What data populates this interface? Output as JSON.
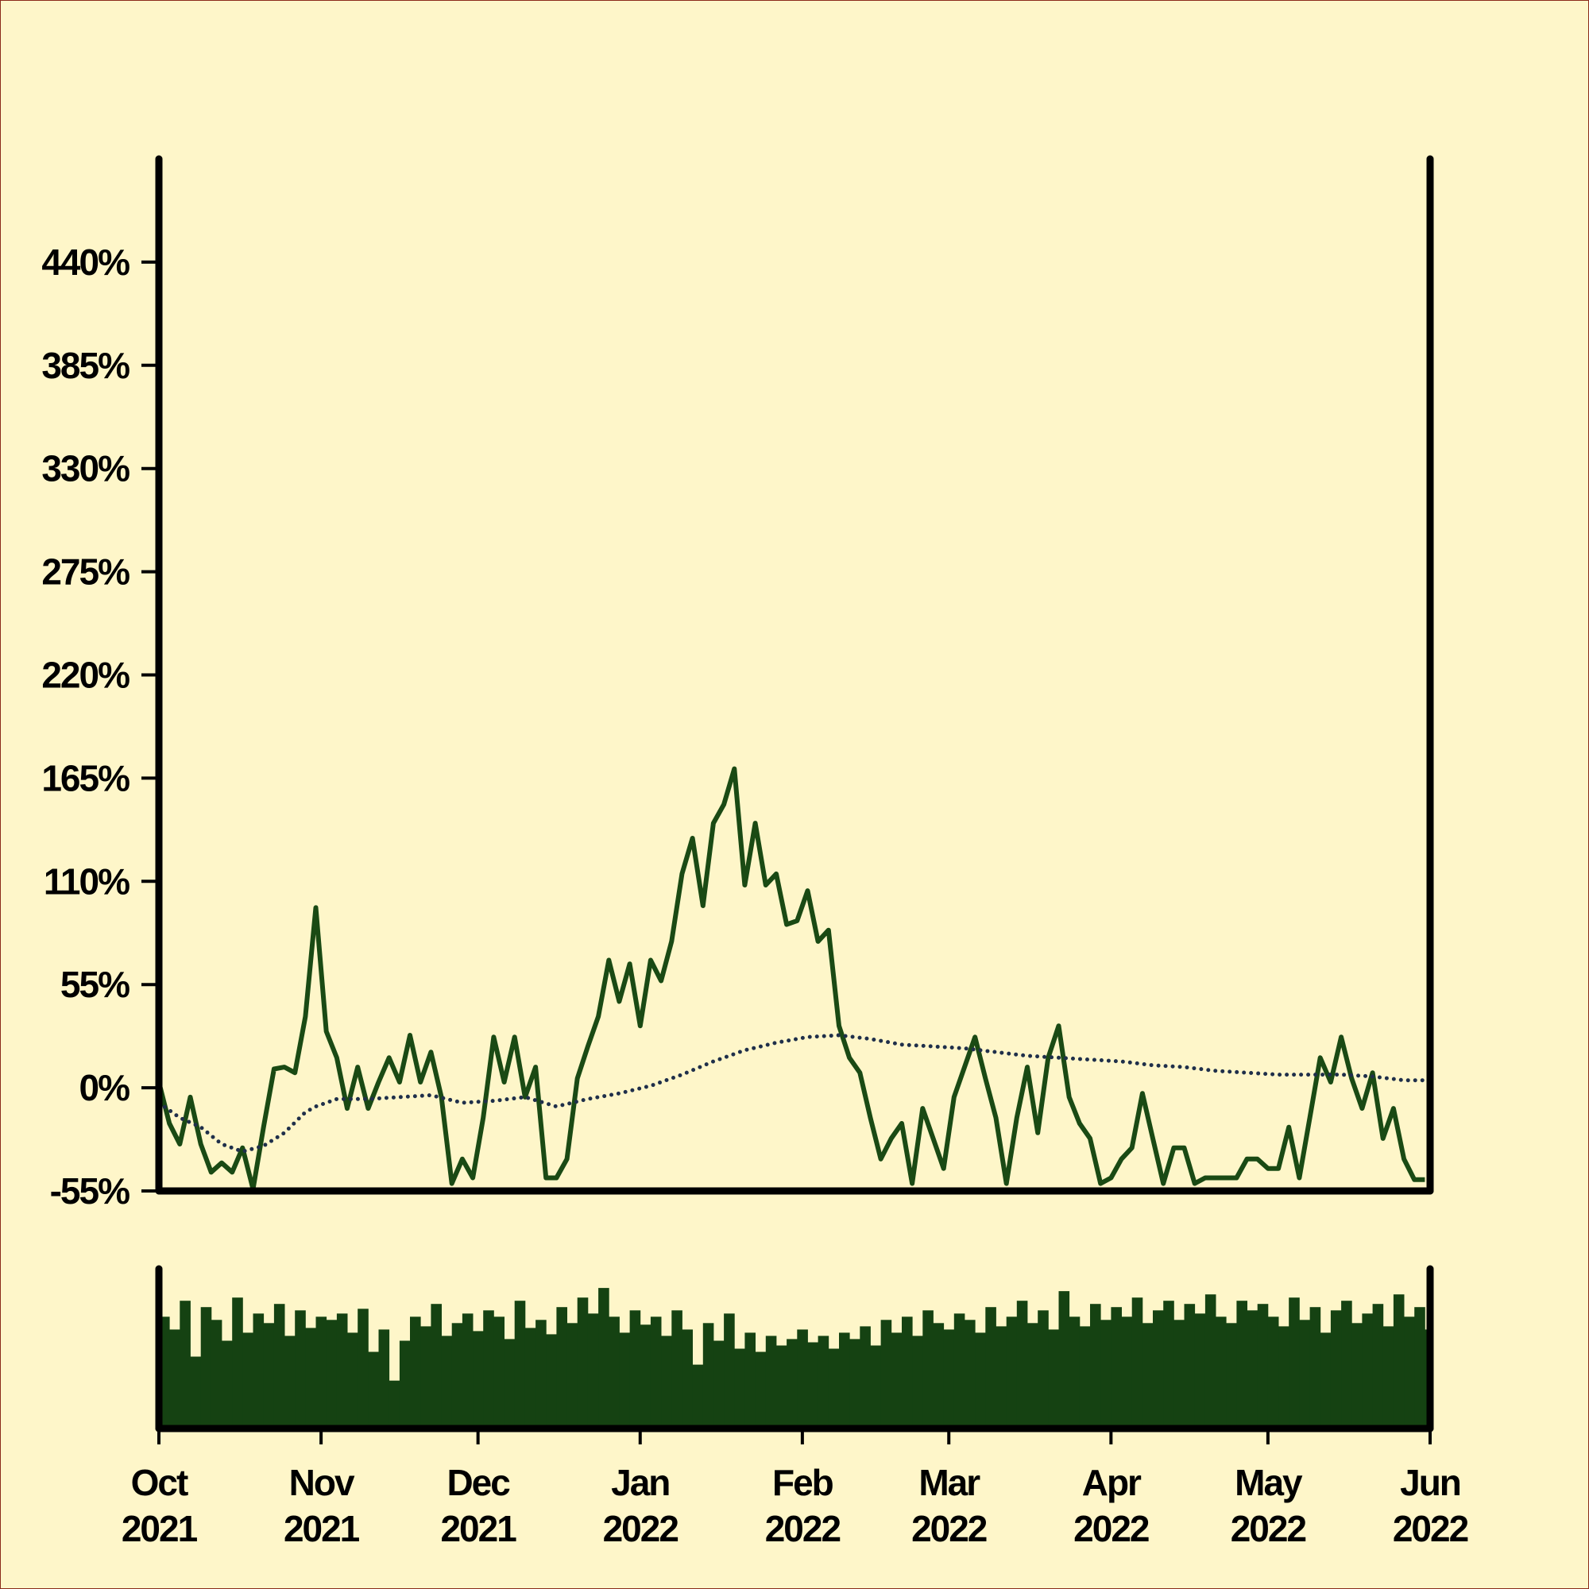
{
  "chart_data": [
    {
      "type": "line",
      "xlim": [
        0,
        243
      ],
      "xticks": [
        {
          "value": 0,
          "label": [
            "Oct",
            "2021"
          ]
        },
        {
          "value": 31,
          "label": [
            "Nov",
            "2021"
          ]
        },
        {
          "value": 61,
          "label": [
            "Dec",
            "2021"
          ]
        },
        {
          "value": 92,
          "label": [
            "Jan",
            "2022"
          ]
        },
        {
          "value": 123,
          "label": [
            "Feb",
            "2022"
          ]
        },
        {
          "value": 151,
          "label": [
            "Mar",
            "2022"
          ]
        },
        {
          "value": 182,
          "label": [
            "Apr",
            "2022"
          ]
        },
        {
          "value": 212,
          "label": [
            "May",
            "2022"
          ]
        },
        {
          "value": 243,
          "label": [
            "Jun",
            "2022"
          ]
        }
      ],
      "ylim": [
        -55,
        495
      ],
      "yticks": [
        {
          "value": -55,
          "label": "-55%"
        },
        {
          "value": 0,
          "label": "0%"
        },
        {
          "value": 55,
          "label": "55%"
        },
        {
          "value": 110,
          "label": "110%"
        },
        {
          "value": 165,
          "label": "165%"
        },
        {
          "value": 220,
          "label": "220%"
        },
        {
          "value": 275,
          "label": "275%"
        },
        {
          "value": 330,
          "label": "330%"
        },
        {
          "value": 385,
          "label": "385%"
        },
        {
          "value": 440,
          "label": "440%"
        }
      ],
      "series": [
        {
          "color": "#1a4a14",
          "style": "solid",
          "x": [
            0,
            2,
            4,
            6,
            8,
            10,
            12,
            14,
            16,
            18,
            20,
            22,
            24,
            26,
            28,
            30,
            32,
            34,
            36,
            38,
            40,
            42,
            44,
            46,
            48,
            50,
            52,
            54,
            56,
            58,
            60,
            62,
            64,
            66,
            68,
            70,
            72,
            74,
            76,
            78,
            80,
            82,
            84,
            86,
            88,
            90,
            92,
            94,
            96,
            98,
            100,
            102,
            104,
            106,
            108,
            110,
            112,
            114,
            116,
            118,
            120,
            122,
            124,
            126,
            128,
            130,
            132,
            134,
            136,
            138,
            140,
            142,
            144,
            146,
            148,
            150,
            152,
            154,
            156,
            158,
            160,
            162,
            164,
            166,
            168,
            170,
            172,
            174,
            176,
            178,
            180,
            182,
            184,
            186,
            188,
            190,
            192,
            194,
            196,
            198,
            200,
            202,
            204,
            206,
            208,
            210,
            212,
            214,
            216,
            218,
            220,
            222,
            224,
            226,
            228,
            230,
            232,
            234,
            236,
            238,
            240,
            242
          ],
          "values": [
            3,
            -19,
            -30,
            -5,
            -30,
            -45,
            -40,
            -45,
            -32,
            -54,
            -21,
            10,
            11,
            8,
            38,
            96,
            30,
            16,
            -11,
            11,
            -11,
            3,
            16,
            3,
            28,
            3,
            19,
            -5,
            -51,
            -38,
            -48,
            -16,
            27,
            3,
            27,
            -5,
            11,
            -48,
            -48,
            -38,
            5,
            22,
            38,
            68,
            46,
            66,
            33,
            68,
            57,
            78,
            114,
            133,
            97,
            141,
            151,
            170,
            108,
            141,
            108,
            114,
            87,
            89,
            105,
            78,
            84,
            33,
            16,
            8,
            -16,
            -38,
            -27,
            -19,
            -51,
            -11,
            -27,
            -43,
            -5,
            11,
            27,
            5,
            -16,
            -51,
            -16,
            11,
            -24,
            16,
            33,
            -5,
            -19,
            -27,
            -51,
            -48,
            -38,
            -32,
            -3,
            -27,
            -51,
            -32,
            -32,
            -51,
            -48,
            -48,
            -48,
            -48,
            -38,
            -38,
            -43,
            -43,
            -21,
            -48,
            -16,
            16,
            3,
            27,
            5,
            -11,
            8,
            -27,
            -11,
            -38,
            -49,
            -49
          ]
        },
        {
          "color": "#1f2f4a",
          "style": "dotted",
          "x": [
            0,
            4,
            8,
            12,
            16,
            20,
            24,
            28,
            30,
            34,
            40,
            46,
            52,
            58,
            64,
            70,
            76,
            82,
            88,
            94,
            100,
            106,
            112,
            118,
            124,
            130,
            136,
            142,
            148,
            154,
            160,
            166,
            172,
            178,
            184,
            190,
            196,
            202,
            208,
            214,
            220,
            226,
            232,
            238,
            242
          ],
          "values": [
            -8,
            -16,
            -21,
            -30,
            -34,
            -31,
            -24,
            -13,
            -10,
            -6,
            -6,
            -5,
            -4,
            -8,
            -7,
            -5,
            -10,
            -6,
            -3,
            1,
            7,
            14,
            20,
            24,
            27,
            28,
            26,
            23,
            22,
            21,
            19,
            17,
            16,
            15,
            14,
            12,
            11,
            9,
            8,
            7,
            7,
            7,
            6,
            4,
            4
          ]
        }
      ]
    },
    {
      "type": "bar",
      "color": "#154212",
      "ylim": [
        0,
        100
      ],
      "values": [
        70,
        62,
        80,
        45,
        76,
        68,
        55,
        82,
        60,
        72,
        66,
        78,
        58,
        74,
        63,
        70,
        68,
        72,
        60,
        75,
        48,
        62,
        30,
        55,
        70,
        64,
        78,
        58,
        66,
        72,
        61,
        74,
        70,
        56,
        80,
        63,
        68,
        59,
        76,
        66,
        82,
        72,
        88,
        70,
        60,
        74,
        65,
        70,
        58,
        74,
        62,
        40,
        66,
        55,
        72,
        50,
        60,
        48,
        58,
        52,
        56,
        62,
        54,
        58,
        50,
        60,
        56,
        64,
        52,
        68,
        60,
        70,
        58,
        74,
        66,
        62,
        72,
        68,
        60,
        76,
        64,
        70,
        80,
        66,
        74,
        62,
        86,
        70,
        64,
        78,
        68,
        76,
        70,
        82,
        66,
        74,
        80,
        68,
        78,
        72,
        84,
        70,
        66,
        80,
        74,
        78,
        70,
        64,
        82,
        68,
        76,
        60,
        74,
        80,
        66,
        72,
        78,
        64,
        84,
        70,
        76,
        62
      ]
    }
  ]
}
